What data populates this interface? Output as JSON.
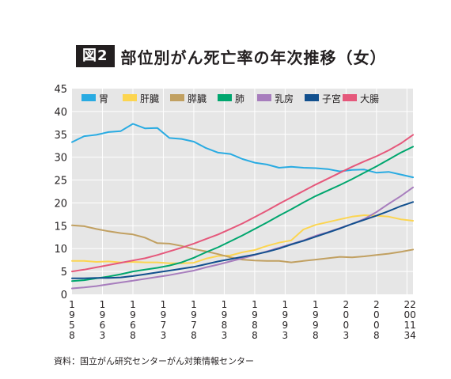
{
  "header": {
    "badge": "図2",
    "title": "部位別がん死亡率の年次推移（女）"
  },
  "source": "資料：国立がん研究センターがん対策情報センター",
  "colors": {
    "gastric": "#29abe2",
    "liver": "#fcd550",
    "pancreas": "#c1a061",
    "lung": "#00a66e",
    "breast": "#a77dbd",
    "uterus": "#12508e",
    "colorectal": "#e5587b",
    "plot_bg": "#e6e6e6",
    "grid": "#ffffff"
  },
  "chart_data": {
    "type": "line",
    "title": "部位別がん死亡率の年次推移（女）",
    "xlabel": "",
    "ylabel": "",
    "xlim": [
      1958,
      2014
    ],
    "ylim": [
      0,
      45
    ],
    "yticks": [
      0,
      5,
      10,
      15,
      20,
      25,
      30,
      35,
      40,
      45
    ],
    "xticks": [
      "1958",
      "1963",
      "1968",
      "1973",
      "1978",
      "1983",
      "1988",
      "1993",
      "1998",
      "2003",
      "2008",
      "2013",
      "2014"
    ],
    "grid": true,
    "legend_position": "top",
    "x": [
      1958,
      1960,
      1962,
      1964,
      1966,
      1968,
      1970,
      1972,
      1974,
      1976,
      1978,
      1980,
      1982,
      1984,
      1986,
      1988,
      1990,
      1992,
      1994,
      1996,
      1998,
      2000,
      2002,
      2004,
      2006,
      2008,
      2010,
      2012,
      2014
    ],
    "series": [
      {
        "key": "gastric",
        "name": "胃",
        "values": [
          33.3,
          34.6,
          34.9,
          35.5,
          35.7,
          37.3,
          36.3,
          36.4,
          34.2,
          34.0,
          33.4,
          32.0,
          31.0,
          30.7,
          29.6,
          28.8,
          28.4,
          27.7,
          27.9,
          27.7,
          27.6,
          27.4,
          26.9,
          27.2,
          27.3,
          26.6,
          26.8,
          26.2,
          25.6
        ]
      },
      {
        "key": "liver",
        "name": "肝臓",
        "values": [
          7.3,
          7.3,
          7.1,
          7.2,
          7.0,
          7.1,
          7.0,
          7.0,
          6.8,
          6.8,
          6.9,
          7.8,
          8.4,
          8.5,
          9.2,
          9.7,
          10.6,
          11.3,
          11.8,
          14.2,
          15.2,
          15.8,
          16.4,
          17.0,
          17.3,
          17.2,
          17.0,
          16.4,
          16.1
        ]
      },
      {
        "key": "pancreas",
        "name": "膵臓",
        "values": [
          15.1,
          14.9,
          14.3,
          13.8,
          13.4,
          13.1,
          12.4,
          11.2,
          11.1,
          10.6,
          9.9,
          9.4,
          8.8,
          8.1,
          7.6,
          7.4,
          7.3,
          7.3,
          7.0,
          7.3,
          7.6,
          7.9,
          8.2,
          8.1,
          8.3,
          8.6,
          8.9,
          9.3,
          9.8
        ]
      },
      {
        "key": "lung",
        "name": "肺",
        "values": [
          2.9,
          3.1,
          3.5,
          3.9,
          4.4,
          5.0,
          5.4,
          5.8,
          6.3,
          7.0,
          8.0,
          9.2,
          10.3,
          11.6,
          12.9,
          14.3,
          15.7,
          17.2,
          18.6,
          20.1,
          21.5,
          22.7,
          23.9,
          25.2,
          26.6,
          28.0,
          29.5,
          31.0,
          32.3
        ]
      },
      {
        "key": "breast",
        "name": "乳房",
        "values": [
          1.3,
          1.5,
          1.8,
          2.2,
          2.6,
          3.0,
          3.4,
          3.8,
          4.2,
          4.7,
          5.2,
          5.9,
          6.5,
          7.2,
          7.9,
          8.6,
          9.4,
          10.2,
          11.0,
          11.8,
          12.8,
          13.6,
          14.5,
          15.4,
          16.5,
          18.0,
          19.8,
          21.5,
          23.4
        ]
      },
      {
        "key": "uterus",
        "name": "子宮",
        "values": [
          3.5,
          3.5,
          3.6,
          3.6,
          3.7,
          4.0,
          4.4,
          4.8,
          5.2,
          5.6,
          6.0,
          6.6,
          7.2,
          7.7,
          8.2,
          8.7,
          9.3,
          10.0,
          10.9,
          11.7,
          12.6,
          13.5,
          14.4,
          15.4,
          16.3,
          17.2,
          18.2,
          19.3,
          20.2
        ]
      },
      {
        "key": "colorectal",
        "name": "大腸",
        "values": [
          5.0,
          5.4,
          5.9,
          6.4,
          6.9,
          7.4,
          7.9,
          8.6,
          9.4,
          10.2,
          11.1,
          12.1,
          13.1,
          14.3,
          15.5,
          16.9,
          18.3,
          19.8,
          21.2,
          22.6,
          24.0,
          25.3,
          26.6,
          27.9,
          29.1,
          30.2,
          31.5,
          33.0,
          34.9
        ]
      }
    ]
  }
}
